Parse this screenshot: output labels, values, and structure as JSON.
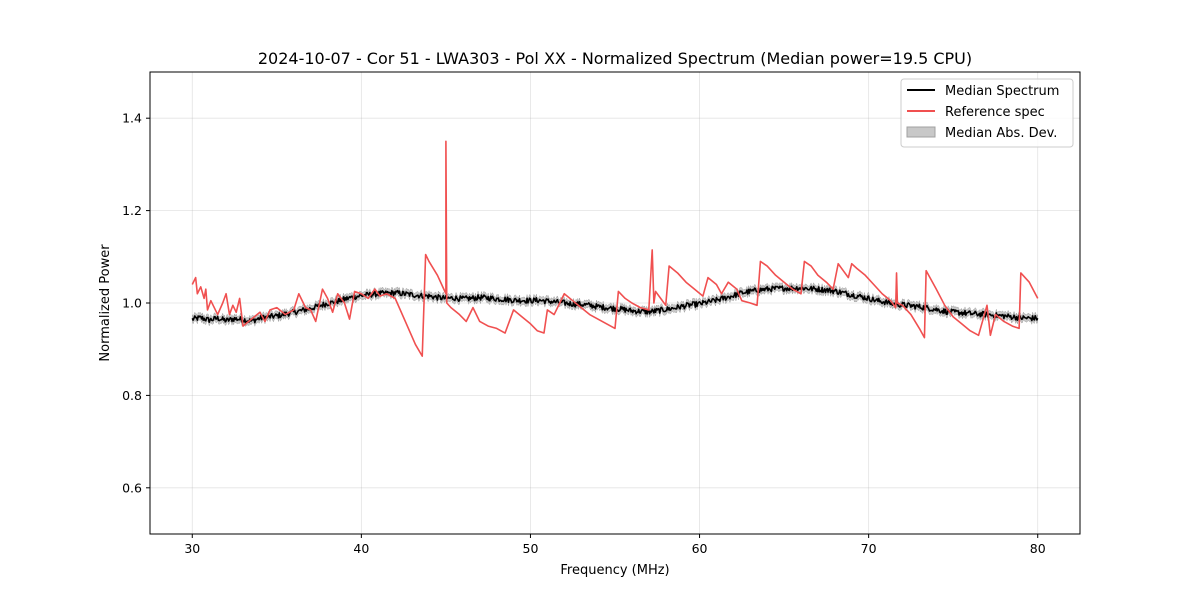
{
  "chart_data": {
    "type": "line",
    "title": "2024-10-07 - Cor 51 - LWA303 - Pol XX - Normalized Spectrum (Median power=19.5 CPU)",
    "xlabel": "Frequency (MHz)",
    "ylabel": "Normalized Power",
    "xlim": [
      27.5,
      82.5
    ],
    "ylim": [
      0.5,
      1.5
    ],
    "xticks": [
      30,
      40,
      50,
      60,
      70,
      80
    ],
    "xtick_labels": [
      "30",
      "40",
      "50",
      "60",
      "70",
      "80"
    ],
    "yticks": [
      0.6,
      0.8,
      1.0,
      1.2,
      1.4
    ],
    "ytick_labels": [
      "0.6",
      "0.8",
      "1.0",
      "1.2",
      "1.4"
    ],
    "grid": true,
    "legend": {
      "location": "upper right",
      "entries": [
        "Median Spectrum",
        "Reference spec",
        "Median Abs. Dev."
      ]
    },
    "colors": {
      "median": "#000000",
      "reference": "#f05050",
      "mad_fill": "#c8c8c8",
      "mad_edge": "#a0a0a0"
    },
    "series": [
      {
        "name": "Median Spectrum",
        "style": "line",
        "x": [
          30.0,
          30.5,
          31.0,
          31.5,
          32.0,
          32.5,
          33.0,
          33.5,
          34.0,
          34.5,
          35.0,
          35.5,
          36.0,
          36.5,
          37.0,
          37.5,
          38.0,
          38.5,
          39.0,
          39.5,
          40.0,
          40.5,
          41.0,
          41.5,
          42.0,
          42.5,
          43.0,
          43.5,
          44.0,
          44.5,
          45.0,
          45.5,
          46.0,
          46.5,
          47.0,
          47.5,
          48.0,
          48.5,
          49.0,
          49.5,
          50.0,
          50.5,
          51.0,
          51.5,
          52.0,
          52.5,
          53.0,
          53.5,
          54.0,
          54.5,
          55.0,
          55.5,
          56.0,
          56.5,
          57.0,
          57.5,
          58.0,
          58.5,
          59.0,
          59.5,
          60.0,
          60.5,
          61.0,
          61.5,
          62.0,
          62.5,
          63.0,
          63.5,
          64.0,
          64.5,
          65.0,
          65.5,
          66.0,
          66.5,
          67.0,
          67.5,
          68.0,
          68.5,
          69.0,
          69.5,
          70.0,
          70.5,
          71.0,
          71.5,
          72.0,
          72.5,
          73.0,
          73.5,
          74.0,
          74.5,
          75.0,
          75.5,
          76.0,
          76.5,
          77.0,
          77.5,
          78.0,
          78.5,
          79.0,
          79.5,
          80.0
        ],
        "values": [
          0.965,
          0.968,
          0.963,
          0.967,
          0.962,
          0.966,
          0.964,
          0.961,
          0.967,
          0.97,
          0.972,
          0.976,
          0.98,
          0.984,
          0.988,
          0.994,
          0.999,
          1.003,
          1.008,
          1.013,
          1.016,
          1.018,
          1.02,
          1.021,
          1.022,
          1.02,
          1.018,
          1.016,
          1.015,
          1.012,
          1.01,
          1.011,
          1.009,
          1.01,
          1.012,
          1.011,
          1.009,
          1.008,
          1.006,
          1.006,
          1.005,
          1.006,
          1.004,
          1.002,
          1.0,
          0.998,
          0.997,
          0.995,
          0.992,
          0.99,
          0.988,
          0.986,
          0.983,
          0.982,
          0.981,
          0.983,
          0.986,
          0.989,
          0.993,
          0.996,
          0.998,
          1.002,
          1.006,
          1.011,
          1.016,
          1.022,
          1.025,
          1.028,
          1.03,
          1.031,
          1.032,
          1.032,
          1.033,
          1.031,
          1.03,
          1.028,
          1.026,
          1.022,
          1.018,
          1.014,
          1.01,
          1.005,
          1.002,
          0.998,
          0.996,
          0.994,
          0.992,
          0.989,
          0.986,
          0.982,
          0.98,
          0.979,
          0.977,
          0.976,
          0.975,
          0.973,
          0.972,
          0.97,
          0.968,
          0.967,
          0.967
        ]
      },
      {
        "name": "Median Abs. Dev.",
        "style": "band",
        "half_width": 0.008
      },
      {
        "name": "Reference spec",
        "style": "line",
        "x": [
          30.0,
          30.2,
          30.3,
          30.5,
          30.7,
          30.8,
          30.9,
          31.1,
          31.5,
          31.8,
          32.0,
          32.2,
          32.4,
          32.6,
          32.8,
          33.0,
          33.5,
          34.0,
          34.3,
          34.6,
          35.0,
          35.5,
          36.0,
          36.3,
          36.7,
          37.0,
          37.3,
          37.7,
          38.0,
          38.3,
          38.6,
          39.0,
          39.3,
          39.6,
          40.0,
          40.4,
          40.8,
          41.1,
          41.5,
          42.0,
          42.6,
          43.2,
          43.6,
          43.8,
          44.0,
          44.5,
          45.0,
          45.0,
          45.05,
          45.3,
          45.8,
          46.2,
          46.6,
          47.0,
          47.5,
          48.0,
          48.5,
          49.0,
          49.5,
          50.0,
          50.4,
          50.8,
          51.0,
          51.4,
          52.0,
          52.5,
          53.0,
          53.5,
          54.0,
          54.5,
          55.0,
          55.2,
          55.6,
          56.0,
          56.5,
          57.0,
          57.2,
          57.3,
          57.4,
          57.7,
          58.0,
          58.2,
          58.7,
          59.2,
          59.7,
          60.2,
          60.5,
          61.0,
          61.3,
          61.7,
          62.2,
          62.5,
          63.0,
          63.4,
          63.6,
          64.0,
          64.5,
          65.0,
          65.5,
          66.0,
          66.2,
          66.6,
          67.0,
          67.5,
          67.9,
          68.2,
          68.5,
          68.8,
          69.0,
          69.3,
          69.8,
          70.3,
          70.8,
          71.3,
          71.6,
          71.65,
          71.7,
          72.0,
          72.5,
          73.0,
          73.3,
          73.4,
          74.0,
          74.5,
          75.0,
          75.5,
          76.0,
          76.5,
          77.0,
          77.2,
          77.5,
          78.0,
          78.5,
          78.9,
          79.0,
          79.5,
          80.0
        ],
        "values": [
          1.04,
          1.055,
          1.02,
          1.035,
          1.01,
          1.03,
          0.985,
          1.005,
          0.975,
          1.0,
          1.02,
          0.975,
          0.995,
          0.98,
          1.01,
          0.95,
          0.965,
          0.98,
          0.96,
          0.985,
          0.99,
          0.975,
          0.985,
          1.02,
          0.99,
          0.985,
          0.96,
          1.03,
          1.01,
          0.98,
          1.02,
          1.0,
          0.965,
          1.025,
          1.02,
          1.01,
          1.03,
          1.015,
          1.02,
          1.01,
          0.96,
          0.91,
          0.885,
          1.105,
          1.09,
          1.06,
          1.02,
          1.35,
          1.0,
          0.99,
          0.975,
          0.96,
          0.99,
          0.96,
          0.95,
          0.945,
          0.935,
          0.985,
          0.97,
          0.955,
          0.94,
          0.935,
          0.985,
          0.975,
          1.02,
          1.005,
          0.99,
          0.975,
          0.965,
          0.955,
          0.945,
          1.025,
          1.01,
          1.0,
          0.99,
          0.985,
          1.115,
          1.0,
          1.025,
          1.01,
          0.995,
          1.08,
          1.065,
          1.045,
          1.03,
          1.015,
          1.055,
          1.04,
          1.02,
          1.045,
          1.03,
          1.005,
          1.0,
          0.995,
          1.09,
          1.08,
          1.06,
          1.045,
          1.03,
          1.02,
          1.09,
          1.08,
          1.06,
          1.045,
          1.03,
          1.085,
          1.07,
          1.055,
          1.085,
          1.075,
          1.06,
          1.04,
          1.02,
          1.005,
          0.99,
          1.065,
          1.0,
          0.995,
          0.975,
          0.945,
          0.925,
          1.07,
          1.03,
          0.995,
          0.97,
          0.955,
          0.94,
          0.93,
          0.995,
          0.93,
          0.975,
          0.96,
          0.95,
          0.945,
          1.065,
          1.045,
          1.01
        ]
      }
    ]
  }
}
